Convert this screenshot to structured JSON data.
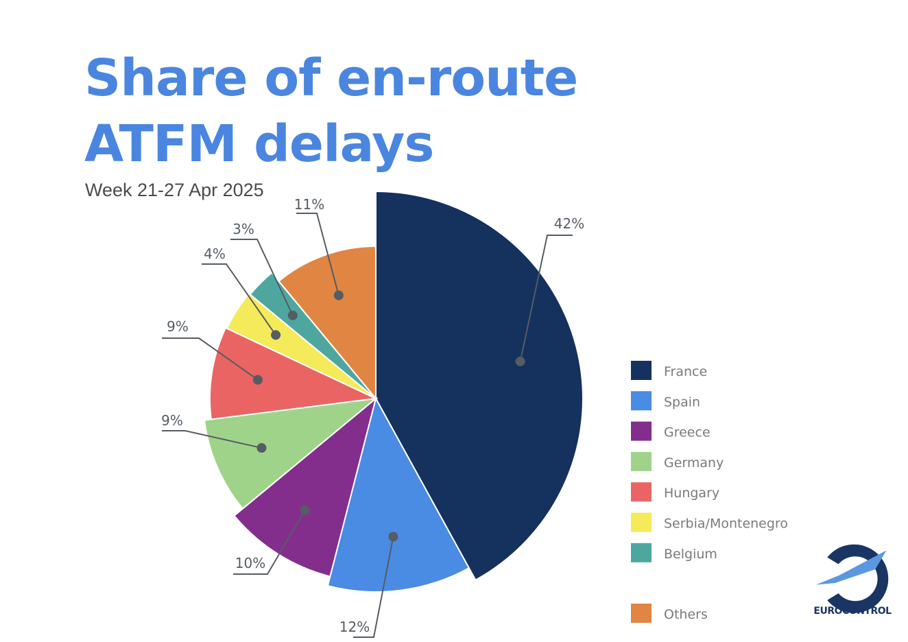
{
  "title": "Share of en-route ATFM delays",
  "subtitle": "Week 21-27 Apr 2025",
  "logo_text": "EUROCONTROL",
  "chart_data": {
    "type": "pie",
    "title": "Share of en-route ATFM delays",
    "subtitle": "Week 21-27 Apr 2025",
    "legend_position": "right",
    "slices": [
      {
        "label": "France",
        "value": 42,
        "display": "42%",
        "color": "#15315e"
      },
      {
        "label": "Spain",
        "value": 12,
        "display": "12%",
        "color": "#4a8be3"
      },
      {
        "label": "Greece",
        "value": 10,
        "display": "10%",
        "color": "#832e8c"
      },
      {
        "label": "Germany",
        "value": 9,
        "display": "9%",
        "color": "#a0d38a"
      },
      {
        "label": "Hungary",
        "value": 9,
        "display": "9%",
        "color": "#ea6464"
      },
      {
        "label": "Serbia/Montenegro",
        "value": 4,
        "display": "4%",
        "color": "#f5ea5a"
      },
      {
        "label": "Belgium",
        "value": 3,
        "display": "3%",
        "color": "#4ea79f"
      },
      {
        "label": "Others",
        "value": 11,
        "display": "11%",
        "color": "#e08542"
      }
    ]
  }
}
